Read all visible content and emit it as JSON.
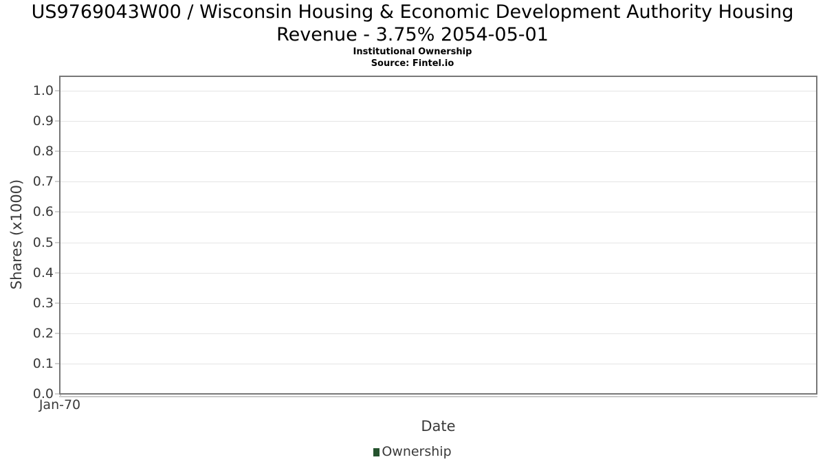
{
  "chart_data": {
    "type": "line",
    "title": "US9769043W00 / Wisconsin Housing & Economic Development Authority Housing Revenue - 3.75% 2054-05-01",
    "subtitle": "Institutional Ownership",
    "source": "Source: Fintel.io",
    "xlabel": "Date",
    "ylabel": "Shares (x1000)",
    "x": [
      "Jan-70"
    ],
    "series": [
      {
        "name": "Ownership",
        "color": "#25532e",
        "values": []
      }
    ],
    "yticks": [
      "0.0",
      "0.1",
      "0.2",
      "0.3",
      "0.4",
      "0.5",
      "0.6",
      "0.7",
      "0.8",
      "0.9",
      "1.0"
    ],
    "ylim": [
      0,
      1.05
    ],
    "grid": true,
    "legend_position": "bottom"
  },
  "colors": {
    "plot_border": "#767676",
    "gridline": "#e4e4e4",
    "axis_text": "#3a3a3a",
    "ownership_green": "#25532e"
  }
}
